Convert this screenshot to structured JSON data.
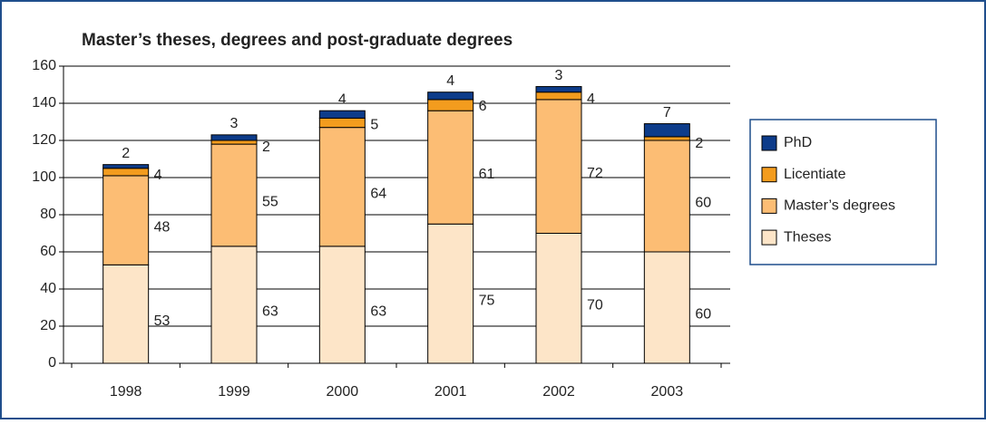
{
  "chart_data": {
    "type": "stacked-bar",
    "title": "Master’s theses, degrees and post-graduate degrees",
    "categories": [
      "1998",
      "1999",
      "2000",
      "2001",
      "2002",
      "2003"
    ],
    "series": [
      {
        "name": "Theses",
        "color": "#fde5c8",
        "values": [
          53,
          63,
          63,
          75,
          70,
          60
        ]
      },
      {
        "name": "Master’s degrees",
        "color": "#fcbd74",
        "values": [
          48,
          55,
          64,
          61,
          72,
          60
        ]
      },
      {
        "name": "Licentiate",
        "color": "#f39c1e",
        "values": [
          4,
          2,
          5,
          6,
          4,
          2
        ]
      },
      {
        "name": "PhD",
        "color": "#0d3c8a",
        "values": [
          2,
          3,
          4,
          4,
          3,
          7
        ]
      }
    ],
    "ylim": [
      0,
      160
    ],
    "yticks": [
      0,
      20,
      40,
      60,
      80,
      100,
      120,
      140,
      160
    ],
    "grid": true,
    "legend": "right"
  }
}
